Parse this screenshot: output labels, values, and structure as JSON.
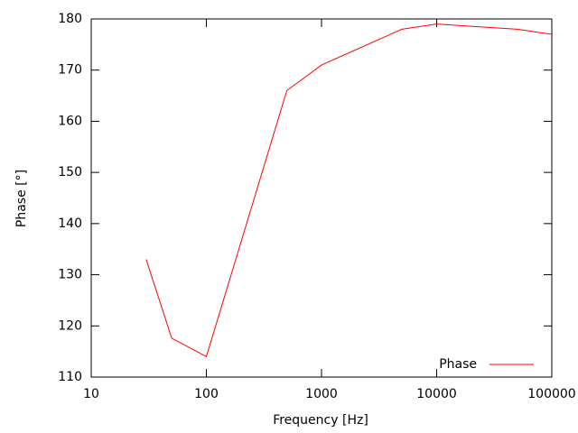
{
  "chart_data": {
    "type": "line",
    "x_label": "Frequency [Hz]",
    "y_label": "Phase [°]",
    "x": [
      30,
      50,
      100,
      500,
      1000,
      5000,
      10000,
      50000,
      100000
    ],
    "series": [
      {
        "name": "Phase",
        "color": "#ff0000",
        "values": [
          133,
          117.6,
          114,
          166,
          171,
          178,
          179,
          178,
          177
        ]
      }
    ],
    "xlim": [
      10,
      100000
    ],
    "xticks": [
      10,
      100,
      1000,
      10000,
      100000
    ],
    "xlog": true,
    "ylim": [
      110,
      180
    ],
    "yticks": [
      110,
      120,
      130,
      140,
      150,
      160,
      170,
      180
    ],
    "grid": false,
    "legend": "bottom-right"
  }
}
